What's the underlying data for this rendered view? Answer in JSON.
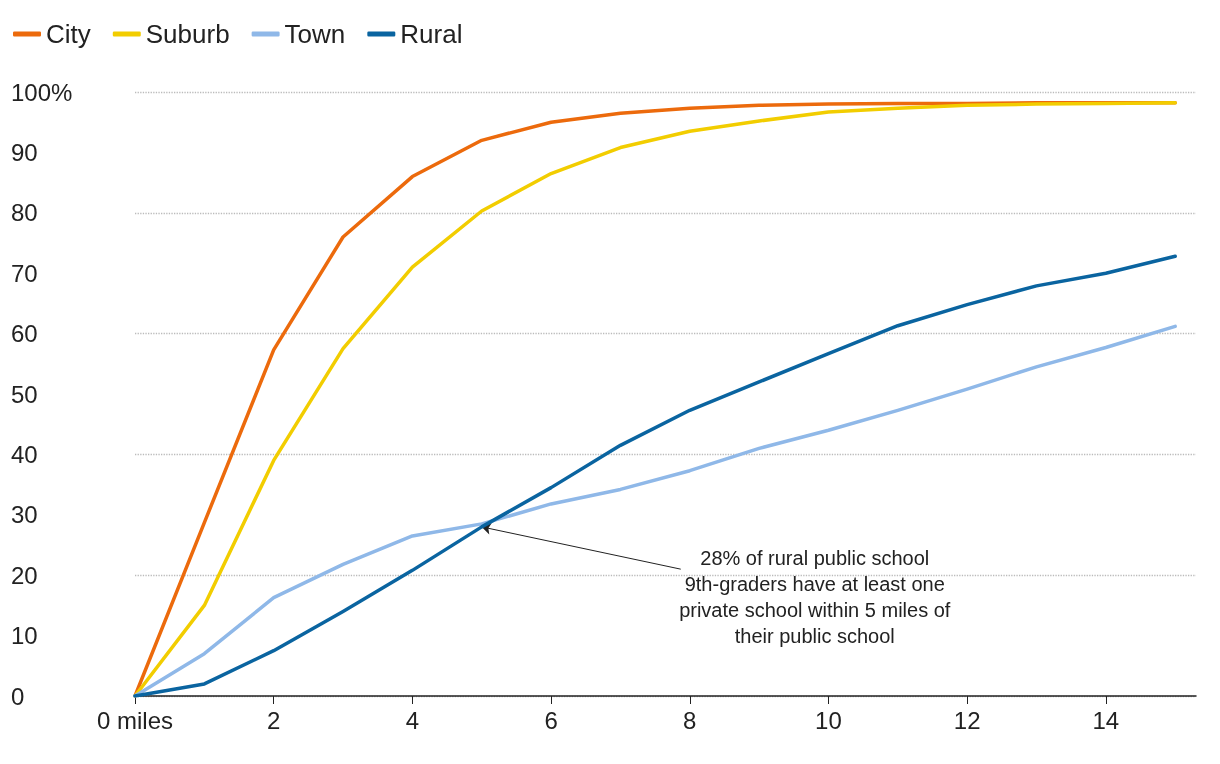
{
  "chart_data": {
    "type": "line",
    "x": [
      0,
      1,
      2,
      3,
      4,
      5,
      6,
      7,
      8,
      9,
      10,
      11,
      12,
      13,
      14,
      15
    ],
    "series": [
      {
        "name": "City",
        "color": "#ec6a0c",
        "values": [
          0,
          28.7,
          57.3,
          76,
          86,
          92,
          95,
          96.5,
          97.3,
          97.8,
          98,
          98.1,
          98.1,
          98.2,
          98.2,
          98.2
        ]
      },
      {
        "name": "Suburb",
        "color": "#f2cd00",
        "values": [
          0,
          15,
          39,
          57.5,
          71,
          80.3,
          86.5,
          90.8,
          93.5,
          95.2,
          96.7,
          97.3,
          97.8,
          98,
          98.1,
          98.2
        ]
      },
      {
        "name": "Town",
        "color": "#8fb8e8",
        "values": [
          0,
          7,
          16.3,
          21.8,
          26.5,
          28.5,
          31.8,
          34.2,
          37.3,
          41,
          44,
          47.3,
          50.8,
          54.5,
          57.7,
          61.2
        ]
      },
      {
        "name": "Rural",
        "color": "#0a64a0",
        "values": [
          0,
          2,
          7.5,
          14,
          20.8,
          28,
          34.5,
          41.5,
          47.3,
          52,
          56.7,
          61.3,
          64.8,
          67.9,
          70,
          72.8
        ]
      }
    ],
    "xlim": [
      0,
      15.3
    ],
    "xticks": [
      {
        "value": 0,
        "label": "0 miles"
      },
      2,
      4,
      6,
      8,
      10,
      12,
      14
    ],
    "ylim": [
      0,
      100
    ],
    "yticks": [
      0,
      10,
      20,
      30,
      40,
      50,
      60,
      70,
      80,
      90,
      {
        "value": 100,
        "label": "100%"
      }
    ],
    "grid": "y",
    "legend": "top left",
    "marker": "none",
    "line_style": "solid",
    "annotations": [
      {
        "text": "28% of rural public school\n9th-graders have at least one\nprivate school within 5 miles of\ntheir public school",
        "x": 5,
        "y": 28
      }
    ]
  }
}
